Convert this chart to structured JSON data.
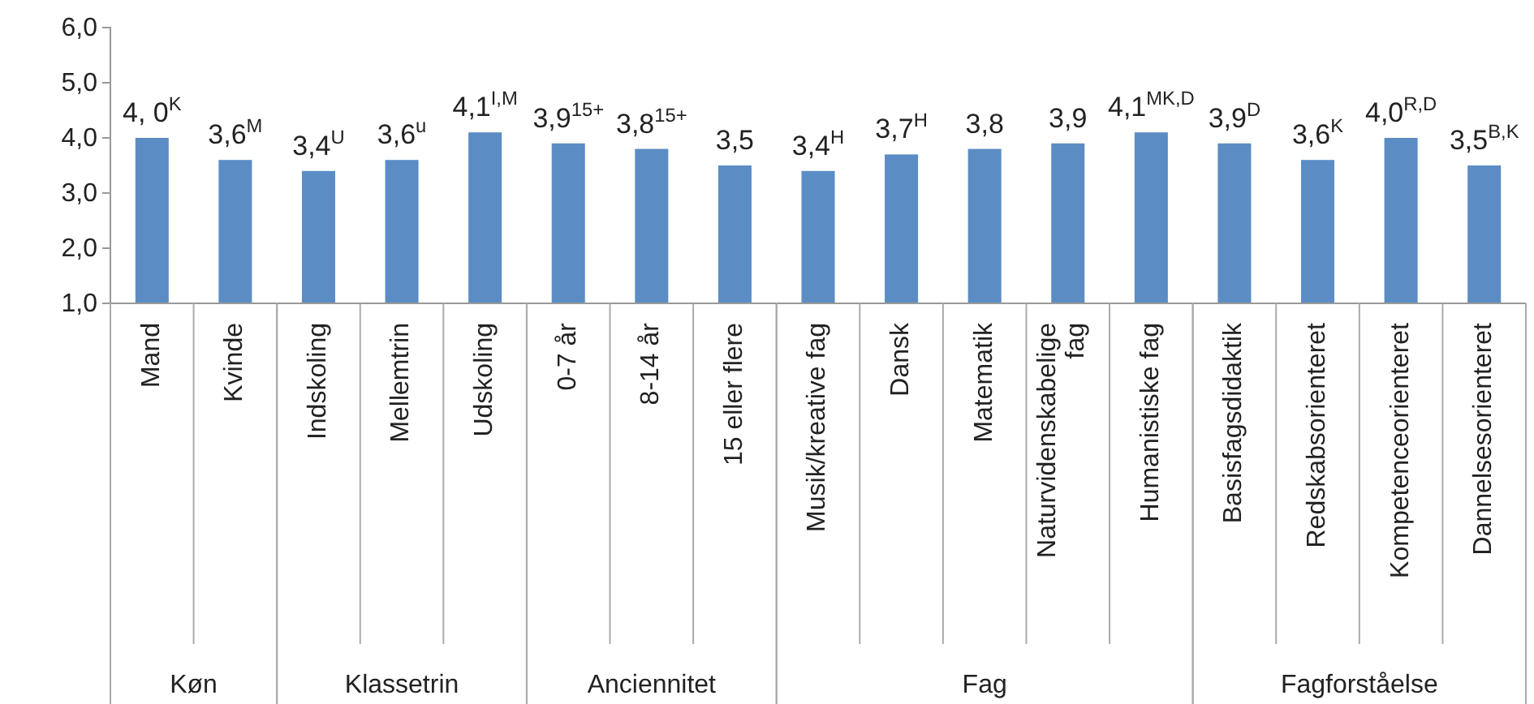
{
  "chart_data": [
    {
      "type": "bar",
      "xlabel": "Køn",
      "categories": [
        "Mand",
        "Kvinde"
      ],
      "values": [
        4.0,
        3.6
      ],
      "color": "#5b8dc4",
      "value_labels": [
        "4, 0$^{K}$",
        "3,6$^{M}$"
      ],
      "ylim": [
        1,
        6
      ],
      "yticks": [
        {
          "value": 1,
          "label": "1,0"
        },
        {
          "value": 2,
          "label": "2,0"
        },
        {
          "value": 3,
          "label": "3,0"
        },
        {
          "value": 4,
          "label": "4,0"
        },
        {
          "value": 5,
          "label": "5,0"
        },
        {
          "value": 6,
          "label": "6,0"
        }
      ]
    },
    {
      "type": "bar",
      "xlabel": "Klassetrin",
      "categories": [
        "Indskoling",
        "Mellemtrin",
        "Udskoling"
      ],
      "values": [
        3.4,
        3.6,
        4.1
      ],
      "color": "#5b8dc4",
      "value_labels": [
        "3,4$^{U}$",
        "3,6$^{u}$",
        "4,1$^{I,M}$"
      ],
      "ylim": [
        1,
        6
      ],
      "tick_labels": "x"
    },
    {
      "type": "bar",
      "xlabel": "Anciennitet",
      "categories": [
        "0-7 år",
        "8-14 år",
        "15 eller flere"
      ],
      "values": [
        3.9,
        3.8,
        3.5
      ],
      "color": "#5b8dc4",
      "value_labels": [
        "3,9$^{15+}$",
        "3,8$^{15+}$",
        "3,5"
      ],
      "ylim": [
        1,
        6
      ],
      "tick_labels": "x"
    },
    {
      "type": "bar",
      "xlabel": "Fag",
      "categories": [
        "Musik/kreative fag",
        "Dansk",
        "Matematik",
        "Naturvidenskabelige fag",
        "Humanistiske fag"
      ],
      "values": [
        3.4,
        3.7,
        3.8,
        3.9,
        4.1
      ],
      "color": "#5b8dc4",
      "value_labels": [
        "3,4$^{H}$",
        "3,7$^{H}$",
        "3,8",
        "3,9",
        "4,1$^{MK,D}$"
      ],
      "ylim": [
        1,
        6
      ],
      "tick_labels": "x"
    },
    {
      "type": "bar",
      "xlabel": "Fagforståelse",
      "categories": [
        "Basisfagsdidaktik",
        "Redskabsorienteret",
        "Kompetenceorienteret",
        "Dannelsesorienteret"
      ],
      "values": [
        3.9,
        3.6,
        4.0,
        3.5
      ],
      "color": "#5b8dc4",
      "value_labels": [
        "3,9$^{D}$",
        "3,6$^{K}$",
        "4,0$^{R,D}$",
        "3,5$^{B,K}$"
      ],
      "ylim": [
        1,
        6
      ],
      "tick_labels": "x"
    }
  ]
}
